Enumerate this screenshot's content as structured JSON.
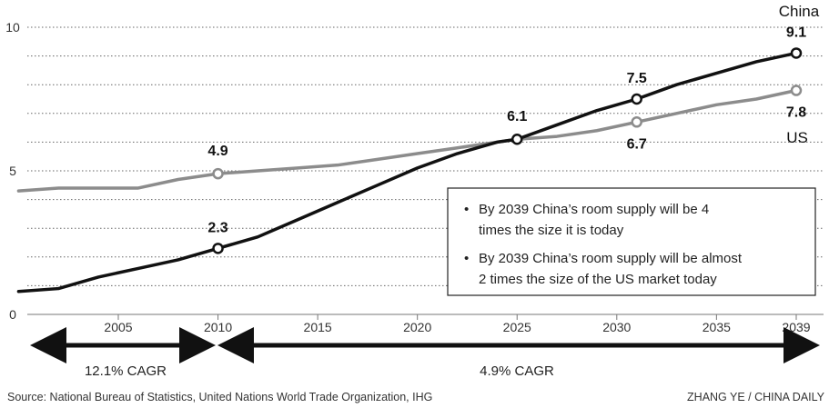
{
  "chart_data": {
    "type": "line",
    "title": "",
    "xlabel": "",
    "ylabel": "",
    "xlim": [
      2000,
      2040
    ],
    "ylim": [
      0,
      10
    ],
    "y_ticks": [
      0,
      5,
      10
    ],
    "x_ticks": [
      2005,
      2010,
      2015,
      2020,
      2025,
      2030,
      2035,
      2039
    ],
    "grid": "horizontal dotted",
    "series": [
      {
        "name": "China",
        "color": "#111111",
        "x": [
          2000,
          2002,
          2004,
          2006,
          2008,
          2010,
          2012,
          2014,
          2016,
          2018,
          2020,
          2022,
          2024,
          2025,
          2027,
          2029,
          2031,
          2033,
          2035,
          2037,
          2039
        ],
        "values": [
          0.8,
          0.9,
          1.3,
          1.6,
          1.9,
          2.3,
          2.7,
          3.3,
          3.9,
          4.5,
          5.1,
          5.6,
          6.0,
          6.1,
          6.6,
          7.1,
          7.5,
          8.0,
          8.4,
          8.8,
          9.1
        ]
      },
      {
        "name": "US",
        "color": "#8c8c8c",
        "x": [
          2000,
          2002,
          2004,
          2006,
          2008,
          2010,
          2012,
          2014,
          2016,
          2018,
          2020,
          2022,
          2024,
          2025,
          2027,
          2029,
          2031,
          2033,
          2035,
          2037,
          2039
        ],
        "values": [
          4.3,
          4.4,
          4.4,
          4.4,
          4.7,
          4.9,
          5.0,
          5.1,
          5.2,
          5.4,
          5.6,
          5.8,
          6.0,
          6.1,
          6.2,
          6.4,
          6.7,
          7.0,
          7.3,
          7.5,
          7.8
        ]
      }
    ],
    "markers": [
      {
        "series": "China",
        "x": 2010,
        "value": 2.3,
        "label": "2.3"
      },
      {
        "series": "China",
        "x": 2025,
        "value": 6.1,
        "label": "6.1"
      },
      {
        "series": "China",
        "x": 2031,
        "value": 7.5,
        "label": "7.5"
      },
      {
        "series": "China",
        "x": 2039,
        "value": 9.1,
        "label": "9.1"
      },
      {
        "series": "US",
        "x": 2010,
        "value": 4.9,
        "label": "4.9"
      },
      {
        "series": "US",
        "x": 2031,
        "value": 6.7,
        "label": "6.7"
      },
      {
        "series": "US",
        "x": 2039,
        "value": 7.8,
        "label": "7.8"
      }
    ],
    "series_labels": {
      "china": "China",
      "us": "US"
    },
    "notes": [
      "By 2039 China’s room supply will be 4 times the size it is today",
      "By 2039 China’s room supply will be almost 2 times the size of the US market today"
    ],
    "cagr": [
      {
        "label": "12.1% CAGR",
        "from": 2000,
        "to": 2010
      },
      {
        "label": "4.9% CAGR",
        "from": 2010,
        "to": 2040
      }
    ],
    "source": "Source: National Bureau of Statistics, United Nations World Trade Organization, IHG",
    "credit": "ZHANG YE / CHINA DAILY"
  }
}
